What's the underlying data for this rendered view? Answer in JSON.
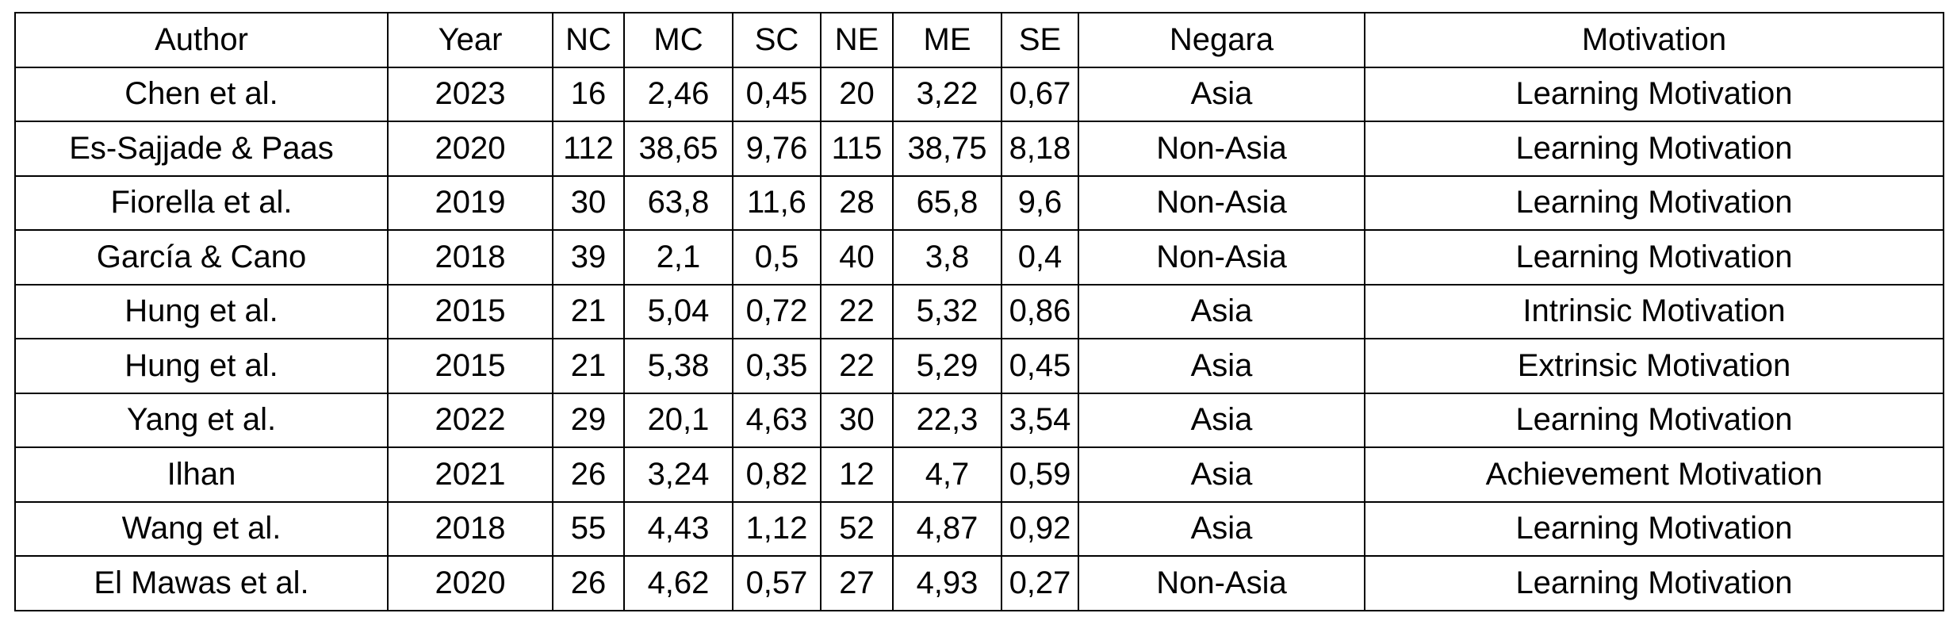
{
  "table": {
    "headers": [
      "Author",
      "Year",
      "NC",
      "MC",
      "SC",
      "NE",
      "ME",
      "SE",
      "Negara",
      "Motivation"
    ],
    "rows": [
      [
        "Chen et al.",
        "2023",
        "16",
        "2,46",
        "0,45",
        "20",
        "3,22",
        "0,67",
        "Asia",
        "Learning Motivation"
      ],
      [
        "Es-Sajjade & Paas",
        "2020",
        "112",
        "38,65",
        "9,76",
        "115",
        "38,75",
        "8,18",
        "Non-Asia",
        "Learning Motivation"
      ],
      [
        "Fiorella et al.",
        "2019",
        "30",
        "63,8",
        "11,6",
        "28",
        "65,8",
        "9,6",
        "Non-Asia",
        "Learning Motivation"
      ],
      [
        "García & Cano",
        "2018",
        "39",
        "2,1",
        "0,5",
        "40",
        "3,8",
        "0,4",
        "Non-Asia",
        "Learning Motivation"
      ],
      [
        "Hung et al.",
        "2015",
        "21",
        "5,04",
        "0,72",
        "22",
        "5,32",
        "0,86",
        "Asia",
        "Intrinsic Motivation"
      ],
      [
        "Hung et al.",
        "2015",
        "21",
        "5,38",
        "0,35",
        "22",
        "5,29",
        "0,45",
        "Asia",
        "Extrinsic Motivation"
      ],
      [
        "Yang et al.",
        "2022",
        "29",
        "20,1",
        "4,63",
        "30",
        "22,3",
        "3,54",
        "Asia",
        "Learning Motivation"
      ],
      [
        "Ilhan",
        "2021",
        "26",
        "3,24",
        "0,82",
        "12",
        "4,7",
        "0,59",
        "Asia",
        "Achievement Motivation"
      ],
      [
        "Wang et al.",
        "2018",
        "55",
        "4,43",
        "1,12",
        "52",
        "4,87",
        "0,92",
        "Asia",
        "Learning Motivation"
      ],
      [
        "El Mawas et al.",
        "2020",
        "26",
        "4,62",
        "0,57",
        "27",
        "4,93",
        "0,27",
        "Non-Asia",
        "Learning Motivation"
      ]
    ]
  }
}
